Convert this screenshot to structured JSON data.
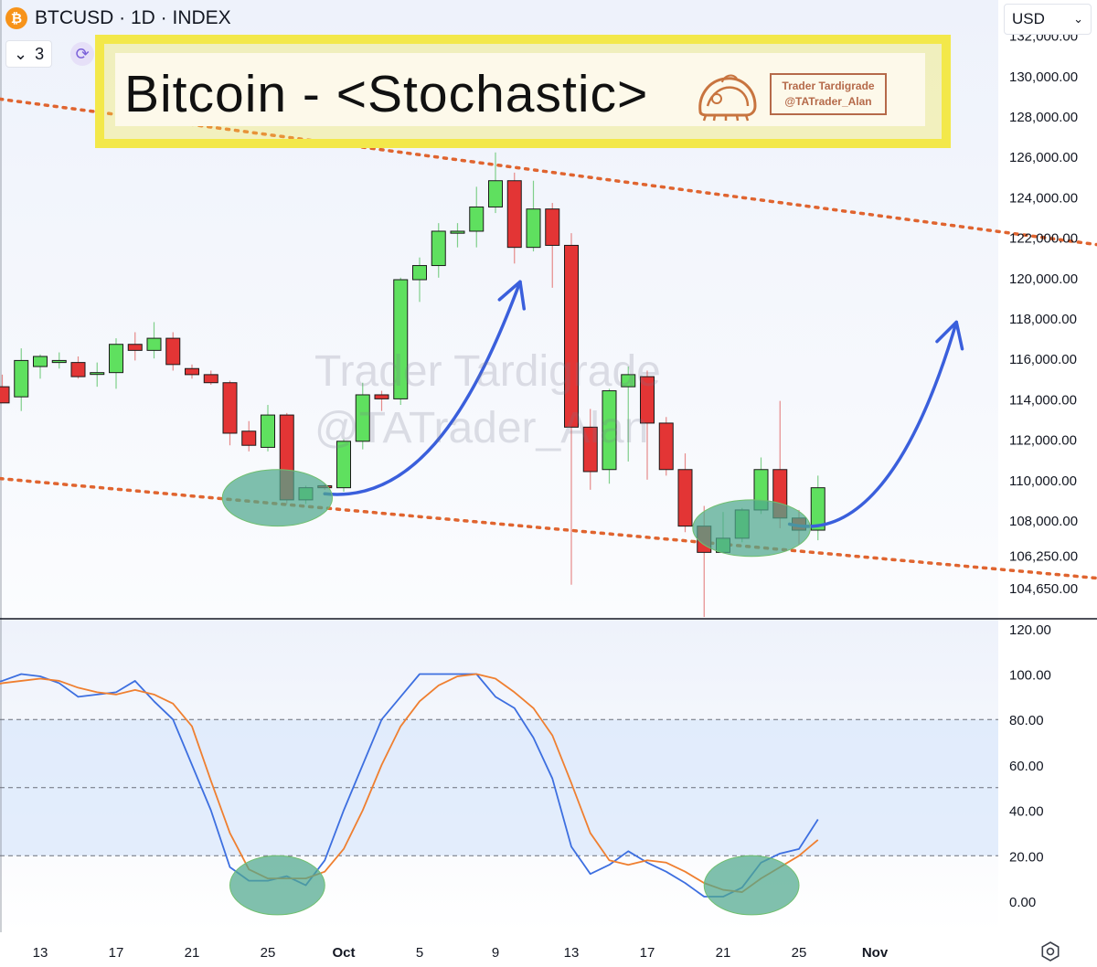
{
  "header": {
    "symbol": "BTCUSD · 1D · INDEX",
    "indicator_count": "3",
    "currency": "USD",
    "title": "Bitcoin - <Stochastic>",
    "badge_line1": "Trader Tardigrade",
    "badge_line2": "@TATrader_Alan",
    "watermark_line1": "Trader Tardigrade",
    "watermark_line2": "@TATrader_Alan"
  },
  "colors": {
    "up": "#5fe05f",
    "down": "#e33535",
    "k_line": "#3d6fe0",
    "d_line": "#ef7f30",
    "channel": "#e0642f",
    "arrow": "#3a5fdc",
    "ellipse": "#4fa88e"
  },
  "chart_data": [
    {
      "type": "candlestick",
      "y_ticks": [
        "132,000.00",
        "130,000.00",
        "128,000.00",
        "126,000.00",
        "124,000.00",
        "122,000.00",
        "120,000.00",
        "118,000.00",
        "116,000.00",
        "114,000.00",
        "112,000.00",
        "110,000.00",
        "108,000.00",
        "106,250.00",
        "104,650.00"
      ],
      "x_ticks": [
        "13",
        "17",
        "21",
        "25",
        "Oct",
        "5",
        "9",
        "13",
        "17",
        "21",
        "25",
        "Nov"
      ],
      "x_tick_day": [
        0,
        4,
        8,
        12,
        16,
        20,
        24,
        28,
        32,
        36,
        40,
        44
      ],
      "candles": [
        {
          "d": -2,
          "o": 114600,
          "h": 115200,
          "l": 113800,
          "c": 113800
        },
        {
          "d": -1,
          "o": 114100,
          "h": 116500,
          "l": 113400,
          "c": 115900
        },
        {
          "d": 0,
          "o": 115600,
          "h": 116200,
          "l": 115000,
          "c": 116100
        },
        {
          "d": 1,
          "o": 115800,
          "h": 116300,
          "l": 115500,
          "c": 115900
        },
        {
          "d": 2,
          "o": 115800,
          "h": 116100,
          "l": 115000,
          "c": 115100
        },
        {
          "d": 3,
          "o": 115300,
          "h": 115800,
          "l": 114600,
          "c": 115300
        },
        {
          "d": 4,
          "o": 115300,
          "h": 117000,
          "l": 114500,
          "c": 116700
        },
        {
          "d": 5,
          "o": 116700,
          "h": 117300,
          "l": 115900,
          "c": 116400
        },
        {
          "d": 6,
          "o": 116400,
          "h": 117800,
          "l": 116000,
          "c": 117000
        },
        {
          "d": 7,
          "o": 117000,
          "h": 117300,
          "l": 115400,
          "c": 115700
        },
        {
          "d": 8,
          "o": 115500,
          "h": 115700,
          "l": 115000,
          "c": 115200
        },
        {
          "d": 9,
          "o": 115200,
          "h": 115400,
          "l": 114700,
          "c": 114800
        },
        {
          "d": 10,
          "o": 114800,
          "h": 114900,
          "l": 111700,
          "c": 112300
        },
        {
          "d": 11,
          "o": 112400,
          "h": 112900,
          "l": 111400,
          "c": 111700
        },
        {
          "d": 12,
          "o": 111600,
          "h": 113700,
          "l": 111400,
          "c": 113200
        },
        {
          "d": 13,
          "o": 113200,
          "h": 113300,
          "l": 108800,
          "c": 109000
        },
        {
          "d": 14,
          "o": 109000,
          "h": 109700,
          "l": 108800,
          "c": 109600
        },
        {
          "d": 15,
          "o": 109700,
          "h": 109800,
          "l": 109500,
          "c": 109600
        },
        {
          "d": 16,
          "o": 109600,
          "h": 112000,
          "l": 109400,
          "c": 111900
        },
        {
          "d": 17,
          "o": 111900,
          "h": 114800,
          "l": 111500,
          "c": 114200
        },
        {
          "d": 18,
          "o": 114200,
          "h": 114400,
          "l": 113400,
          "c": 114000
        },
        {
          "d": 19,
          "o": 114000,
          "h": 120000,
          "l": 113700,
          "c": 119900
        },
        {
          "d": 20,
          "o": 119900,
          "h": 121000,
          "l": 118800,
          "c": 120600
        },
        {
          "d": 21,
          "o": 120600,
          "h": 122700,
          "l": 120000,
          "c": 122300
        },
        {
          "d": 22,
          "o": 122200,
          "h": 122700,
          "l": 121500,
          "c": 122300
        },
        {
          "d": 23,
          "o": 122300,
          "h": 124500,
          "l": 121500,
          "c": 123500
        },
        {
          "d": 24,
          "o": 123500,
          "h": 126200,
          "l": 123200,
          "c": 124800
        },
        {
          "d": 25,
          "o": 124800,
          "h": 125200,
          "l": 120700,
          "c": 121500
        },
        {
          "d": 26,
          "o": 121500,
          "h": 124800,
          "l": 121300,
          "c": 123400
        },
        {
          "d": 27,
          "o": 123400,
          "h": 123700,
          "l": 119500,
          "c": 121600
        },
        {
          "d": 28,
          "o": 121600,
          "h": 122200,
          "l": 104800,
          "c": 112600
        },
        {
          "d": 29,
          "o": 112600,
          "h": 113500,
          "l": 109500,
          "c": 110400
        },
        {
          "d": 30,
          "o": 110500,
          "h": 114500,
          "l": 109800,
          "c": 114400
        },
        {
          "d": 31,
          "o": 114600,
          "h": 115600,
          "l": 110900,
          "c": 115200
        },
        {
          "d": 32,
          "o": 115100,
          "h": 115400,
          "l": 110000,
          "c": 112800
        },
        {
          "d": 33,
          "o": 112800,
          "h": 113100,
          "l": 110200,
          "c": 110500
        },
        {
          "d": 34,
          "o": 110500,
          "h": 111300,
          "l": 107400,
          "c": 107700
        },
        {
          "d": 35,
          "o": 107700,
          "h": 108700,
          "l": 103200,
          "c": 106400
        },
        {
          "d": 36,
          "o": 106400,
          "h": 108400,
          "l": 106500,
          "c": 107100
        },
        {
          "d": 37,
          "o": 107100,
          "h": 108600,
          "l": 106900,
          "c": 108500
        },
        {
          "d": 38,
          "o": 108500,
          "h": 111100,
          "l": 108300,
          "c": 110500
        },
        {
          "d": 39,
          "o": 110500,
          "h": 113900,
          "l": 107600,
          "c": 108100
        },
        {
          "d": 40,
          "o": 108100,
          "h": 108500,
          "l": 106800,
          "c": 107500
        },
        {
          "d": 41,
          "o": 107500,
          "h": 110200,
          "l": 107000,
          "c": 109600
        }
      ],
      "channel_upper": [
        [
          -5,
          129200
        ],
        [
          56,
          121600
        ]
      ],
      "channel_lower": [
        [
          -5,
          110300
        ],
        [
          56,
          105100
        ]
      ],
      "arrows": [
        {
          "from": [
            15,
            109300
          ],
          "ctrl1": [
            20,
            108800
          ],
          "ctrl2": [
            23,
            114000
          ],
          "to": [
            25.3,
            119800
          ]
        },
        {
          "from": [
            39.5,
            107800
          ],
          "ctrl1": [
            43,
            107000
          ],
          "ctrl2": [
            46,
            110500
          ],
          "to": [
            48.3,
            117800
          ]
        }
      ],
      "highlights": [
        {
          "d": 12.5,
          "price": 109100,
          "rx_days": 2.9,
          "ry_price": 1400
        },
        {
          "d": 37.5,
          "price": 107600,
          "rx_days": 3.1,
          "ry_price": 1400
        }
      ]
    },
    {
      "type": "line",
      "title": "",
      "y_ticks": [
        "120.00",
        "100.00",
        "80.00",
        "60.00",
        "40.00",
        "20.00",
        "0.00"
      ],
      "y_tick_values": [
        120,
        100,
        80,
        60,
        40,
        20,
        0
      ],
      "dashed_levels": [
        80,
        50,
        20
      ],
      "shaded_range": [
        20,
        80
      ],
      "series": [
        {
          "color": "#3d6fe0",
          "points": [
            [
              -3,
              95
            ],
            [
              -2,
              97
            ],
            [
              -1,
              100
            ],
            [
              0,
              99
            ],
            [
              1,
              96
            ],
            [
              2,
              90
            ],
            [
              3,
              91
            ],
            [
              4,
              92
            ],
            [
              5,
              97
            ],
            [
              6,
              88
            ],
            [
              7,
              80
            ],
            [
              8,
              60
            ],
            [
              9,
              40
            ],
            [
              10,
              15
            ],
            [
              11,
              9
            ],
            [
              12,
              9
            ],
            [
              13,
              11
            ],
            [
              14,
              7
            ],
            [
              15,
              18
            ],
            [
              16,
              40
            ],
            [
              17,
              60
            ],
            [
              18,
              80
            ],
            [
              19,
              90
            ],
            [
              20,
              100
            ],
            [
              21,
              100
            ],
            [
              22,
              100
            ],
            [
              23,
              100
            ],
            [
              24,
              90
            ],
            [
              25,
              85
            ],
            [
              26,
              72
            ],
            [
              27,
              54
            ],
            [
              28,
              24
            ],
            [
              29,
              12
            ],
            [
              30,
              16
            ],
            [
              31,
              22
            ],
            [
              32,
              17
            ],
            [
              33,
              13
            ],
            [
              34,
              8
            ],
            [
              35,
              2
            ],
            [
              36,
              2
            ],
            [
              37,
              6
            ],
            [
              38,
              17
            ],
            [
              39,
              21
            ],
            [
              40,
              23
            ],
            [
              41,
              36
            ]
          ]
        },
        {
          "color": "#ef7f30",
          "points": [
            [
              -3,
              94
            ],
            [
              -2,
              96
            ],
            [
              -1,
              97
            ],
            [
              0,
              98
            ],
            [
              1,
              97
            ],
            [
              2,
              94
            ],
            [
              3,
              92
            ],
            [
              4,
              91
            ],
            [
              5,
              93
            ],
            [
              6,
              91
            ],
            [
              7,
              87
            ],
            [
              8,
              77
            ],
            [
              9,
              53
            ],
            [
              10,
              30
            ],
            [
              11,
              14
            ],
            [
              12,
              10
            ],
            [
              13,
              10
            ],
            [
              14,
              10
            ],
            [
              15,
              13
            ],
            [
              16,
              23
            ],
            [
              17,
              40
            ],
            [
              18,
              60
            ],
            [
              19,
              77
            ],
            [
              20,
              88
            ],
            [
              21,
              95
            ],
            [
              22,
              99
            ],
            [
              23,
              100
            ],
            [
              24,
              98
            ],
            [
              25,
              92
            ],
            [
              26,
              85
            ],
            [
              27,
              73
            ],
            [
              28,
              52
            ],
            [
              29,
              30
            ],
            [
              30,
              18
            ],
            [
              31,
              16
            ],
            [
              32,
              18
            ],
            [
              33,
              17
            ],
            [
              34,
              13
            ],
            [
              35,
              8
            ],
            [
              36,
              5
            ],
            [
              37,
              4
            ],
            [
              38,
              10
            ],
            [
              39,
              15
            ],
            [
              40,
              20
            ],
            [
              41,
              27
            ]
          ]
        }
      ],
      "highlights": [
        {
          "d": 12.5,
          "value": 7,
          "rx_days": 2.5,
          "ry_value": 13
        },
        {
          "d": 37.5,
          "value": 7,
          "rx_days": 2.5,
          "ry_value": 13
        }
      ]
    }
  ]
}
